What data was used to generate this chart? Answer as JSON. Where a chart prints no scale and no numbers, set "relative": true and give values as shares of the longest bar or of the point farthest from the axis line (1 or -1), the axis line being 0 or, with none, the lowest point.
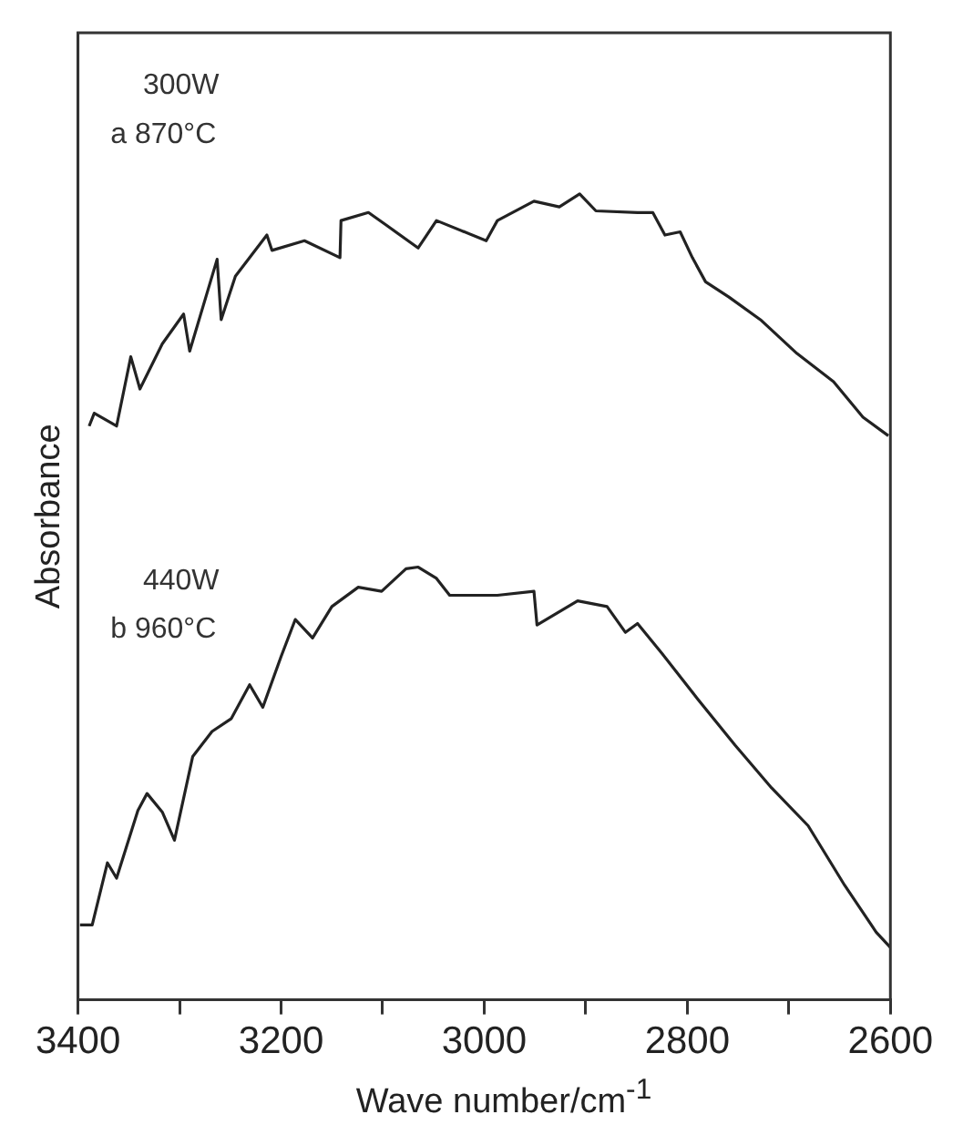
{
  "chart_data": {
    "type": "line",
    "xlabel": "Wave number/cm$^{-1}$",
    "ylabel": "Absorbance",
    "relative": true,
    "xlim": [
      3400,
      2600
    ],
    "xticks": [
      3400,
      {
        "value": 3300,
        "label": null
      },
      3200,
      {
        "value": 3100,
        "label": null
      },
      3000,
      {
        "value": 2900,
        "label": null
      },
      2800,
      {
        "value": 2700,
        "label": null
      },
      2600
    ],
    "grid": false,
    "legend": false,
    "marker": "none",
    "line_style": "solid",
    "annotations": [
      "300W",
      "a 870°C",
      "440W",
      "b 960°C"
    ],
    "series": [
      {
        "color": "#222222",
        "x": [
          3389,
          3384,
          3362,
          3348,
          3339,
          3317,
          3296,
          3290,
          3263,
          3259,
          3245,
          3214,
          3209,
          3177,
          3142,
          3141,
          3114,
          3095,
          3065,
          3047,
          2998,
          2987,
          2951,
          2926,
          2906,
          2890,
          2849,
          2834,
          2822,
          2807,
          2795,
          2782,
          2759,
          2728,
          2692,
          2656,
          2627,
          2602
        ],
        "values": [
          0.712,
          0.728,
          0.712,
          0.798,
          0.758,
          0.814,
          0.851,
          0.805,
          0.919,
          0.844,
          0.898,
          0.949,
          0.93,
          0.942,
          0.921,
          0.967,
          0.977,
          0.96,
          0.933,
          0.967,
          0.942,
          0.967,
          0.991,
          0.984,
          1.0,
          0.979,
          0.977,
          0.977,
          0.949,
          0.953,
          0.921,
          0.891,
          0.872,
          0.844,
          0.802,
          0.767,
          0.723,
          0.7
        ]
      },
      {
        "color": "#222222",
        "x": [
          3398,
          3386,
          3371,
          3362,
          3341,
          3332,
          3317,
          3305,
          3287,
          3268,
          3249,
          3231,
          3218,
          3200,
          3186,
          3169,
          3150,
          3124,
          3101,
          3077,
          3065,
          3047,
          3034,
          2987,
          2951,
          2948,
          2908,
          2879,
          2861,
          2849,
          2825,
          2789,
          2753,
          2717,
          2681,
          2645,
          2614,
          2600
        ],
        "values": [
          0.093,
          0.093,
          0.17,
          0.151,
          0.235,
          0.256,
          0.233,
          0.198,
          0.302,
          0.333,
          0.349,
          0.391,
          0.363,
          0.426,
          0.472,
          0.449,
          0.488,
          0.512,
          0.507,
          0.535,
          0.537,
          0.523,
          0.502,
          0.502,
          0.507,
          0.465,
          0.495,
          0.488,
          0.456,
          0.467,
          0.43,
          0.372,
          0.316,
          0.263,
          0.216,
          0.142,
          0.084,
          0.065
        ]
      }
    ]
  }
}
